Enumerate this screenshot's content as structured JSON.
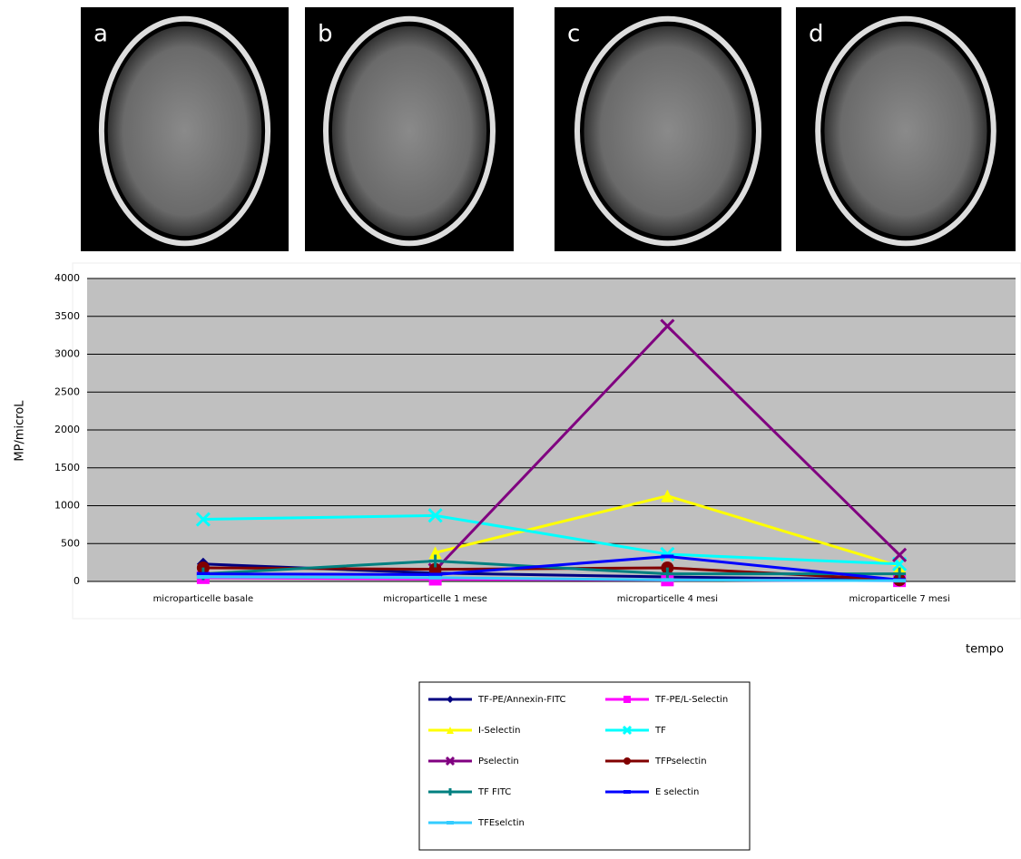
{
  "panels": [
    "a",
    "b",
    "c",
    "d"
  ],
  "chart_data": {
    "type": "line",
    "y_label": "MP/microL",
    "x_label": "tempo",
    "categories": [
      "microparticelle basale",
      "microparticelle 1 mese",
      "microparticelle 4 mesi",
      "microparticelle 7 mesi"
    ],
    "ylim": [
      0,
      4000
    ],
    "yticks": [
      0,
      500,
      1000,
      1500,
      2000,
      2500,
      3000,
      3500,
      4000
    ],
    "grid": true,
    "series": [
      {
        "name": "TF-PE/Annexin-FITC",
        "color": "#000080",
        "marker": "diamond",
        "values": [
          230,
          110,
          60,
          20
        ]
      },
      {
        "name": "TF-PE/L-Selectin",
        "color": "#ff00ff",
        "marker": "square",
        "values": [
          50,
          30,
          20,
          10
        ]
      },
      {
        "name": "I-Selectin",
        "color": "#ffff00",
        "marker": "triangle",
        "values": [
          null,
          380,
          1130,
          200
        ]
      },
      {
        "name": "TF",
        "color": "#00ffff",
        "marker": "x",
        "values": [
          820,
          870,
          360,
          230
        ]
      },
      {
        "name": "Pselectin",
        "color": "#800080",
        "marker": "x",
        "values": [
          null,
          150,
          3370,
          350
        ]
      },
      {
        "name": "TFPselectin",
        "color": "#800000",
        "marker": "circle",
        "values": [
          180,
          160,
          180,
          20
        ]
      },
      {
        "name": "TF FITC",
        "color": "#008080",
        "marker": "plus",
        "values": [
          100,
          270,
          100,
          100
        ]
      },
      {
        "name": "E selectin",
        "color": "#0000ff",
        "marker": "dash",
        "values": [
          100,
          90,
          330,
          20
        ]
      },
      {
        "name": "TFEselctin",
        "color": "#33ccff",
        "marker": "dash",
        "values": [
          60,
          50,
          20,
          10
        ]
      }
    ]
  }
}
